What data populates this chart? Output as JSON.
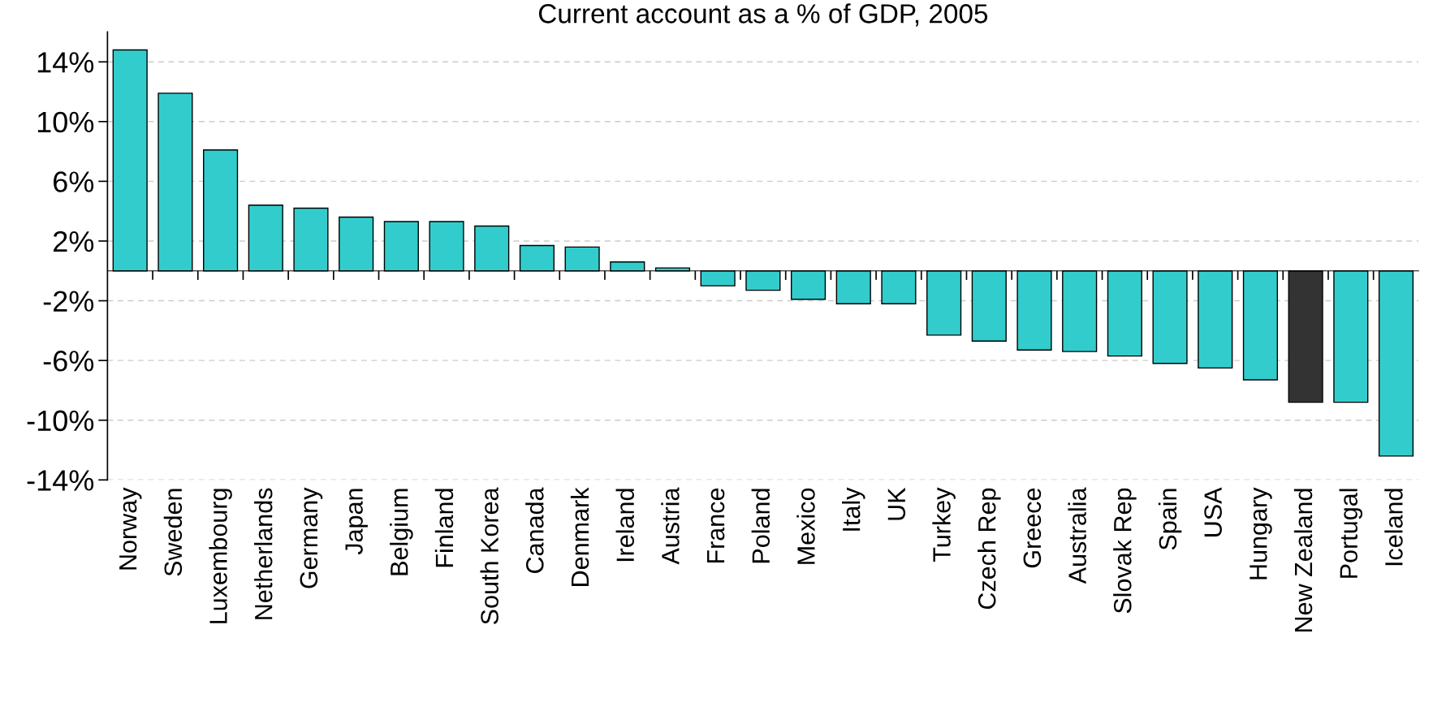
{
  "chart_data": {
    "type": "bar",
    "title": "Current account as a % of GDP, 2005",
    "categories": [
      "Norway",
      "Sweden",
      "Luxembourg",
      "Netherlands",
      "Germany",
      "Japan",
      "Belgium",
      "Finland",
      "South Korea",
      "Canada",
      "Denmark",
      "Ireland",
      "Austria",
      "France",
      "Poland",
      "Mexico",
      "Italy",
      "UK",
      "Turkey",
      "Czech Rep",
      "Greece",
      "Australia",
      "Slovak Rep",
      "Spain",
      "USA",
      "Hungary",
      "New Zealand",
      "Portugal",
      "Iceland"
    ],
    "values": [
      14.8,
      11.9,
      8.1,
      4.4,
      4.2,
      3.6,
      3.3,
      3.3,
      3.0,
      1.7,
      1.6,
      0.6,
      0.2,
      -1.0,
      -1.3,
      -1.9,
      -2.2,
      -2.2,
      -4.3,
      -4.7,
      -5.3,
      -5.4,
      -5.7,
      -6.2,
      -6.5,
      -7.3,
      -8.8,
      -8.8,
      -12.4
    ],
    "colors": [
      "#33cccc",
      "#33cccc",
      "#33cccc",
      "#33cccc",
      "#33cccc",
      "#33cccc",
      "#33cccc",
      "#33cccc",
      "#33cccc",
      "#33cccc",
      "#33cccc",
      "#33cccc",
      "#33cccc",
      "#33cccc",
      "#33cccc",
      "#33cccc",
      "#33cccc",
      "#33cccc",
      "#33cccc",
      "#33cccc",
      "#33cccc",
      "#33cccc",
      "#33cccc",
      "#33cccc",
      "#33cccc",
      "#33cccc",
      "#333333",
      "#33cccc",
      "#33cccc"
    ],
    "ylim": [
      -14,
      16
    ],
    "yticks": [
      {
        "value": -14,
        "label": "-14%"
      },
      {
        "value": -10,
        "label": "-10%"
      },
      {
        "value": -6,
        "label": "-6%"
      },
      {
        "value": -2,
        "label": "-2%"
      },
      {
        "value": 2,
        "label": "2%"
      },
      {
        "value": 6,
        "label": "6%"
      },
      {
        "value": 10,
        "label": "10%"
      },
      {
        "value": 14,
        "label": "14%"
      }
    ],
    "grid": "y"
  }
}
